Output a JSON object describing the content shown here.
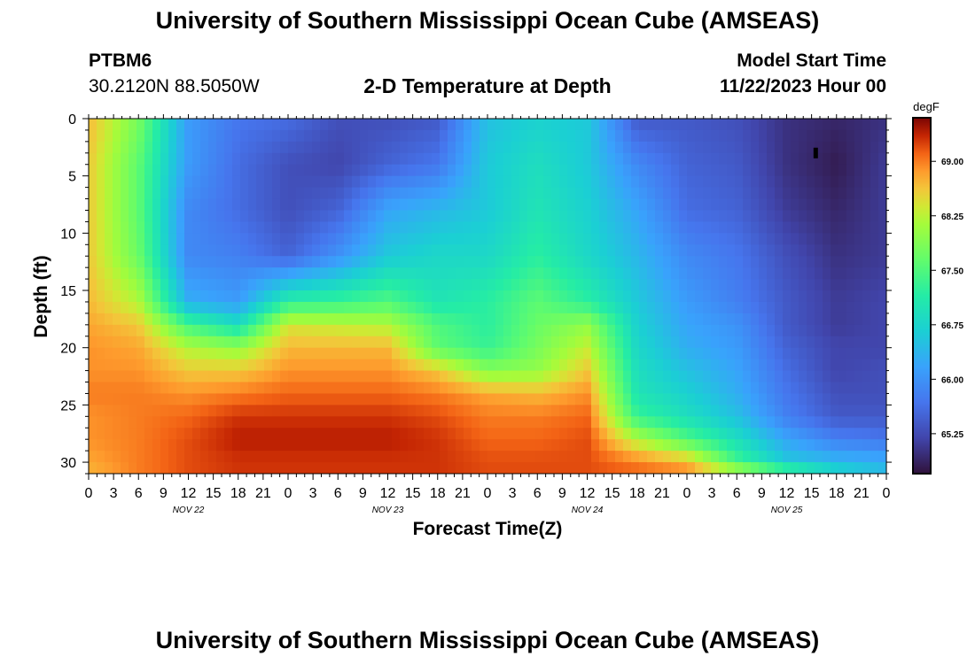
{
  "header": {
    "title": "University of Southern Mississippi Ocean Cube (AMSEAS)",
    "station": "PTBM6",
    "coordinates": "30.2120N  88.5050W",
    "chart_title": "2-D Temperature at Depth",
    "model_start_label": "Model Start Time",
    "model_start_value": "11/22/2023 Hour 00"
  },
  "footer": {
    "title": "University of Southern Mississippi Ocean Cube (AMSEAS)"
  },
  "chart_data": {
    "type": "heatmap",
    "title": "2-D Temperature at Depth",
    "xlabel": "Forecast Time(Z)",
    "ylabel": "Depth (ft)",
    "x_ticks": [
      "0",
      "3",
      "6",
      "9",
      "12",
      "15",
      "18",
      "21",
      "0",
      "3",
      "6",
      "9",
      "12",
      "15",
      "18",
      "21",
      "0",
      "3",
      "6",
      "9",
      "12",
      "15",
      "18",
      "21",
      "0",
      "3",
      "6",
      "9",
      "12",
      "15",
      "18",
      "21",
      "0"
    ],
    "x_range_hours": [
      0,
      96
    ],
    "day_labels": [
      {
        "label": "NOV 22",
        "hour": 12
      },
      {
        "label": "NOV 23",
        "hour": 36
      },
      {
        "label": "NOV 24",
        "hour": 60
      },
      {
        "label": "NOV 25",
        "hour": 84
      }
    ],
    "y_range_ft": [
      0,
      31
    ],
    "y_ticks": [
      "0",
      "5",
      "10",
      "15",
      "20",
      "25",
      "30"
    ],
    "colorbar": {
      "unit": "degF",
      "range": [
        64.7,
        69.6
      ],
      "tick_labels": [
        "69.00",
        "68.25",
        "67.50",
        "66.75",
        "66.00",
        "65.25"
      ],
      "tick_values": [
        69.0,
        68.25,
        67.5,
        66.75,
        66.0,
        65.25
      ]
    },
    "grid_hours": [
      0,
      6,
      12,
      18,
      24,
      30,
      36,
      42,
      48,
      54,
      60,
      66,
      72,
      78,
      84,
      90,
      96
    ],
    "grid_depths_ft": [
      0,
      4,
      8,
      12,
      16,
      18,
      20,
      22,
      24,
      26,
      28,
      30,
      31
    ],
    "temperature_degF": [
      [
        68.7,
        68.6,
        68.6,
        68.6,
        68.7,
        68.8,
        68.9,
        68.9,
        69.0,
        68.9,
        68.9,
        68.8,
        68.7
      ],
      [
        67.8,
        67.6,
        67.6,
        67.7,
        68.2,
        68.6,
        68.8,
        68.9,
        69.0,
        69.0,
        69.0,
        69.0,
        69.0
      ],
      [
        66.1,
        66.1,
        65.9,
        65.9,
        66.3,
        67.4,
        68.2,
        68.6,
        68.9,
        69.1,
        69.2,
        69.2,
        69.2
      ],
      [
        65.7,
        65.6,
        65.6,
        65.8,
        66.1,
        66.9,
        68.0,
        68.6,
        69.0,
        69.3,
        69.4,
        69.3,
        69.3
      ],
      [
        65.6,
        65.3,
        65.3,
        65.5,
        67.2,
        68.4,
        68.7,
        68.9,
        69.1,
        69.3,
        69.4,
        69.3,
        69.3
      ],
      [
        65.3,
        65.2,
        65.5,
        66.0,
        67.3,
        68.3,
        68.7,
        68.9,
        69.1,
        69.3,
        69.4,
        69.3,
        69.3
      ],
      [
        65.3,
        65.5,
        66.2,
        66.6,
        67.5,
        68.2,
        68.7,
        68.9,
        69.1,
        69.3,
        69.4,
        69.3,
        69.3
      ],
      [
        65.4,
        65.7,
        66.4,
        66.8,
        67.0,
        67.5,
        67.6,
        68.6,
        69.0,
        69.2,
        69.3,
        69.3,
        69.3
      ],
      [
        66.5,
        66.6,
        66.6,
        66.8,
        67.2,
        67.2,
        67.3,
        67.9,
        68.8,
        69.0,
        69.1,
        69.2,
        69.2
      ],
      [
        66.7,
        66.9,
        67.0,
        67.2,
        67.6,
        67.7,
        67.8,
        68.0,
        68.7,
        69.0,
        69.1,
        69.2,
        69.2
      ],
      [
        66.6,
        66.6,
        66.7,
        66.8,
        67.2,
        68.0,
        68.3,
        68.6,
        68.9,
        69.1,
        69.2,
        69.2,
        69.2
      ],
      [
        65.4,
        65.9,
        66.2,
        66.4,
        66.6,
        66.7,
        66.8,
        66.9,
        67.0,
        67.3,
        68.2,
        69.0,
        69.1
      ],
      [
        65.4,
        65.5,
        65.6,
        65.9,
        66.1,
        66.2,
        66.3,
        66.5,
        66.7,
        66.9,
        67.5,
        68.7,
        69.0
      ],
      [
        65.3,
        65.4,
        65.5,
        65.7,
        65.8,
        66.0,
        66.1,
        66.2,
        66.3,
        66.5,
        66.9,
        67.4,
        68.4
      ],
      [
        65.0,
        65.0,
        65.1,
        65.3,
        65.4,
        65.4,
        65.5,
        65.6,
        65.7,
        65.8,
        66.2,
        66.6,
        67.6
      ],
      [
        64.9,
        64.8,
        64.9,
        65.0,
        65.1,
        65.1,
        65.2,
        65.2,
        65.3,
        65.4,
        65.8,
        66.4,
        66.9
      ],
      [
        65.0,
        65.1,
        65.1,
        65.1,
        65.2,
        65.2,
        65.2,
        65.3,
        65.3,
        65.4,
        65.7,
        66.3,
        66.5
      ]
    ],
    "marker": {
      "hour": 87.5,
      "depth_ft": 3
    }
  }
}
